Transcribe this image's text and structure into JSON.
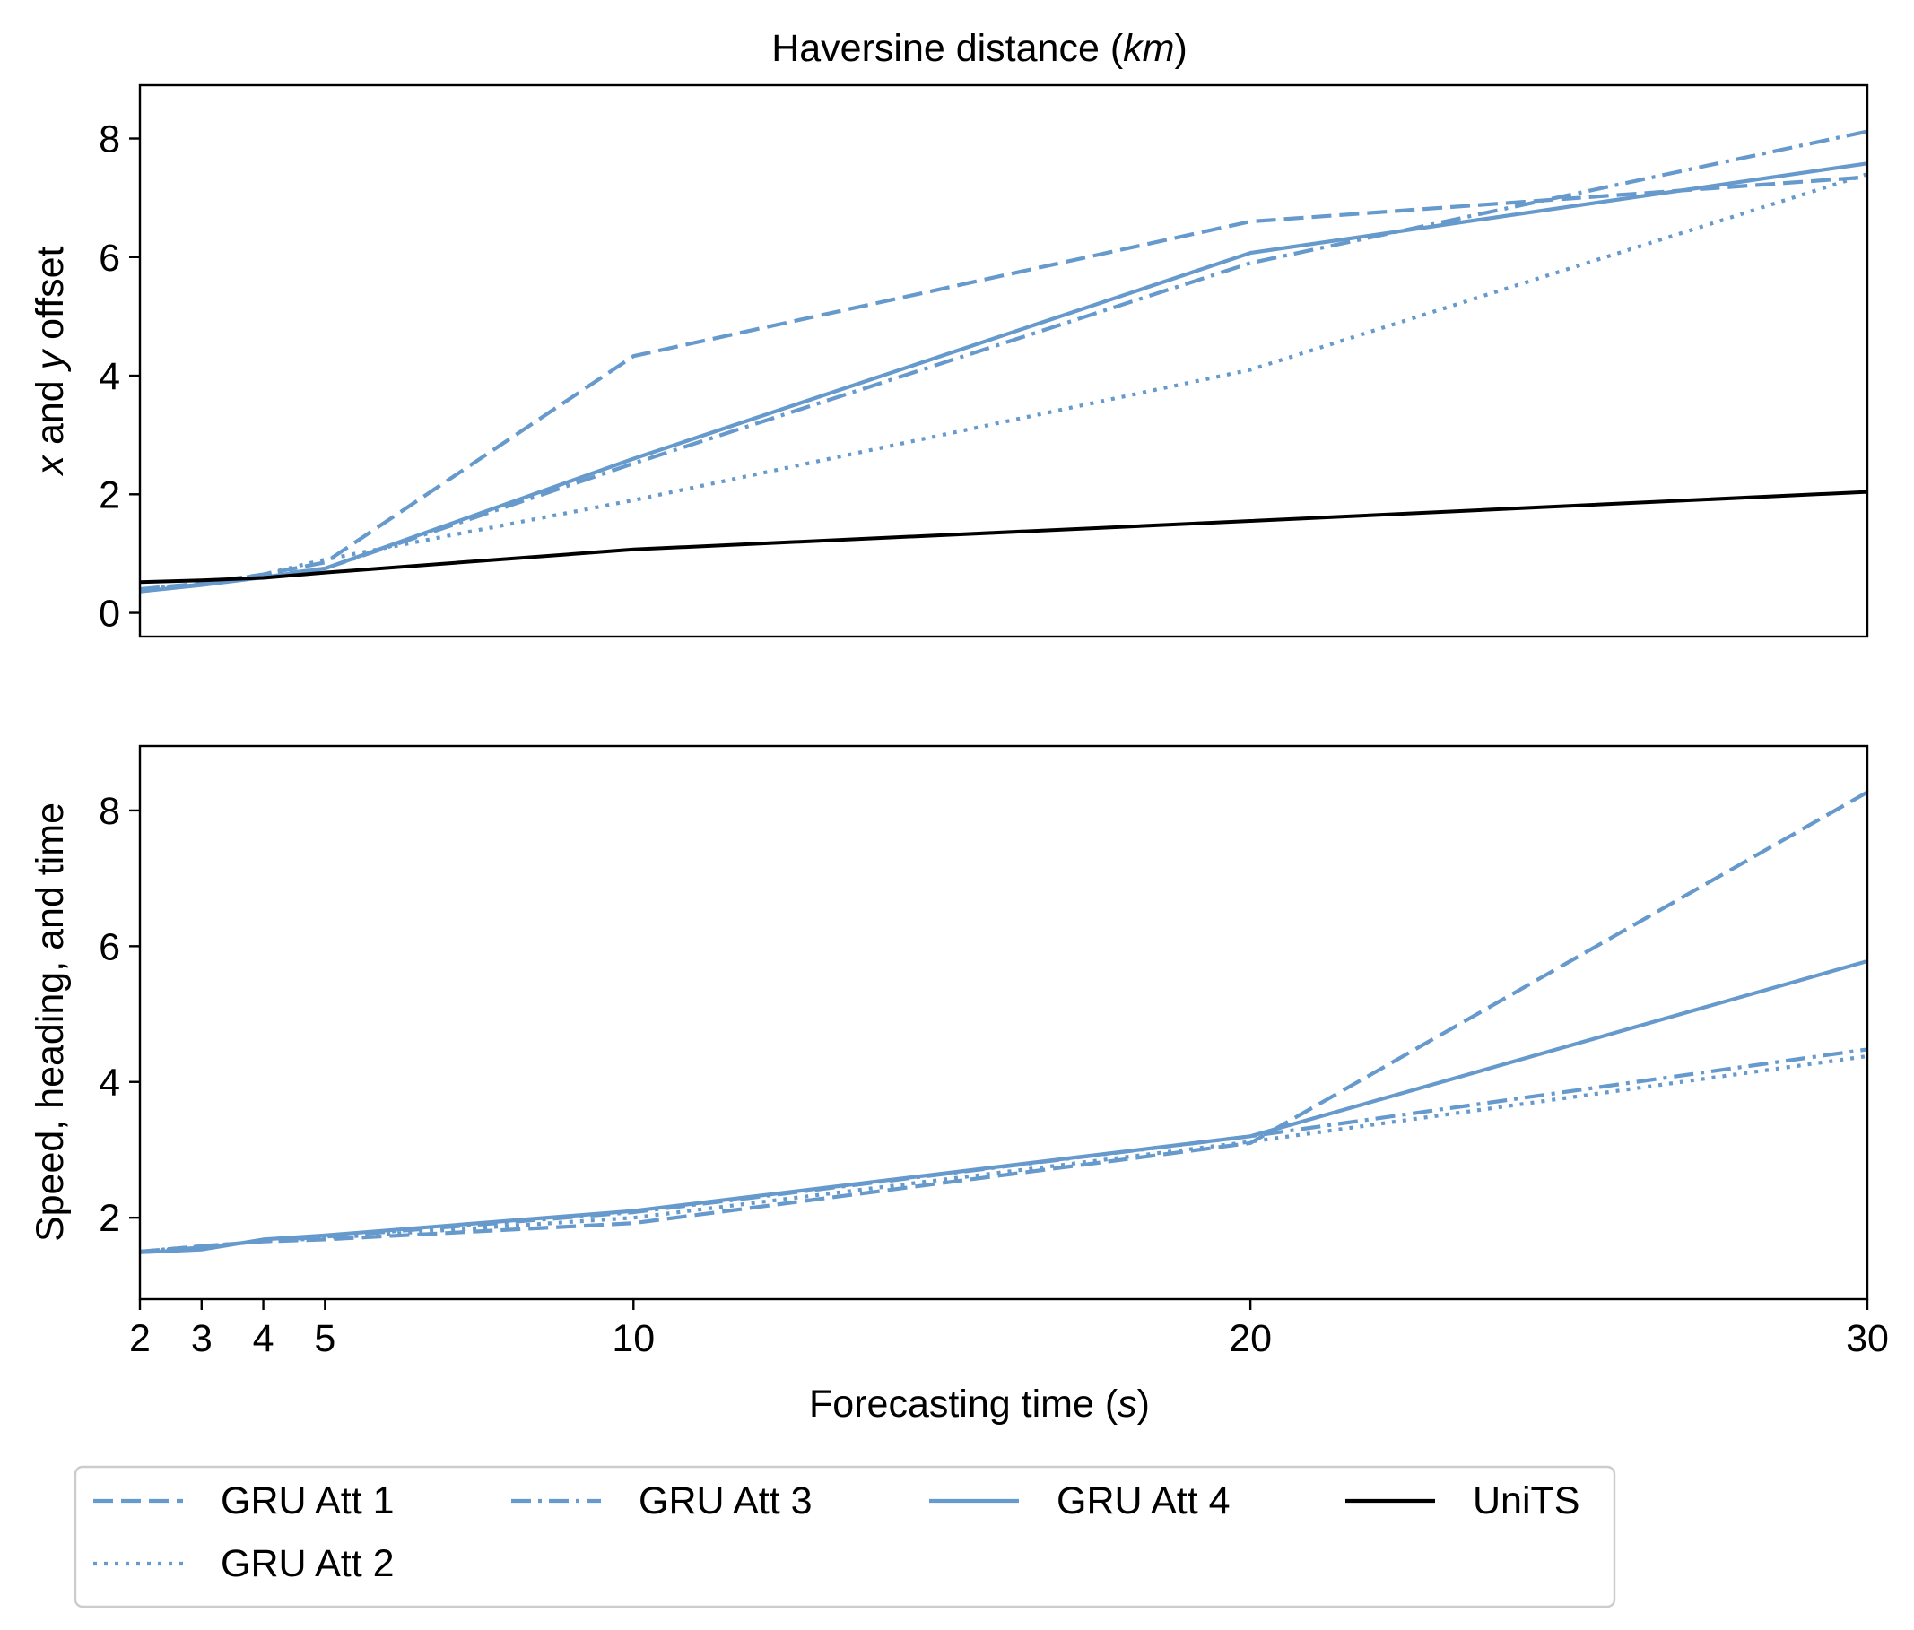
{
  "chart_data": [
    {
      "type": "line",
      "title": "Haversine distance (km)",
      "title_plain": "Haversine distance (",
      "title_italic": "km",
      "title_close": ")",
      "xlabel": "",
      "ylabel_italic_1": "x",
      "ylabel_mid": " and ",
      "ylabel_italic_2": "y",
      "ylabel_end": " offset",
      "ylim": [
        -0.4,
        8.9
      ],
      "yticks": [
        0,
        2,
        4,
        6,
        8
      ],
      "x": [
        2,
        3,
        4,
        5,
        10,
        20,
        30
      ],
      "xlim": [
        2,
        30
      ],
      "series": [
        {
          "name": "GRU Att 1",
          "style": "dashed",
          "values": [
            0.4,
            0.5,
            0.65,
            0.85,
            4.33,
            6.6,
            7.35
          ]
        },
        {
          "name": "GRU Att 2",
          "style": "dotted",
          "values": [
            0.4,
            0.48,
            0.65,
            0.9,
            1.9,
            4.1,
            7.4
          ]
        },
        {
          "name": "GRU Att 3",
          "style": "dashdot",
          "values": [
            0.38,
            0.48,
            0.62,
            0.75,
            2.52,
            5.9,
            8.12
          ]
        },
        {
          "name": "GRU Att 4",
          "style": "solid",
          "values": [
            0.36,
            0.47,
            0.6,
            0.75,
            2.6,
            6.07,
            7.58
          ]
        },
        {
          "name": "UniTS",
          "style": "solid-black",
          "values": [
            0.52,
            0.55,
            0.59,
            0.68,
            1.07,
            1.55,
            2.04
          ]
        }
      ]
    },
    {
      "type": "line",
      "xlabel": "Forecasting time (s)",
      "xlabel_plain": "Forecasting time (",
      "xlabel_italic": "s",
      "xlabel_close": ")",
      "ylabel": "Speed, heading, and time",
      "ylim": [
        0.8,
        8.95
      ],
      "yticks": [
        2,
        4,
        6,
        8
      ],
      "x": [
        2,
        3,
        4,
        5,
        10,
        20,
        30
      ],
      "xlim": [
        2,
        30
      ],
      "xticks": [
        2,
        3,
        4,
        5,
        10,
        20,
        30
      ],
      "series": [
        {
          "name": "GRU Att 1",
          "style": "dashed",
          "values": [
            1.5,
            1.58,
            1.65,
            1.68,
            1.92,
            3.1,
            8.27
          ]
        },
        {
          "name": "GRU Att 2",
          "style": "dotted",
          "values": [
            1.5,
            1.58,
            1.65,
            1.7,
            2.0,
            3.12,
            4.38
          ]
        },
        {
          "name": "GRU Att 3",
          "style": "dashdot",
          "values": [
            1.5,
            1.56,
            1.66,
            1.72,
            2.08,
            3.2,
            4.48
          ]
        },
        {
          "name": "GRU Att 4",
          "style": "solid",
          "values": [
            1.49,
            1.53,
            1.68,
            1.74,
            2.1,
            3.2,
            5.78
          ]
        }
      ]
    }
  ],
  "legend": {
    "placement": "bottom-left, below plots",
    "entries": [
      {
        "label": "GRU Att 1",
        "style": "dashed"
      },
      {
        "label": "GRU Att 3",
        "style": "dashdot"
      },
      {
        "label": "GRU Att 4",
        "style": "solid"
      },
      {
        "label": "UniTS",
        "style": "solid-black"
      },
      {
        "label": "GRU Att 2",
        "style": "dotted"
      }
    ]
  },
  "colors": {
    "gru": "#6699cc",
    "units": "#000000"
  }
}
